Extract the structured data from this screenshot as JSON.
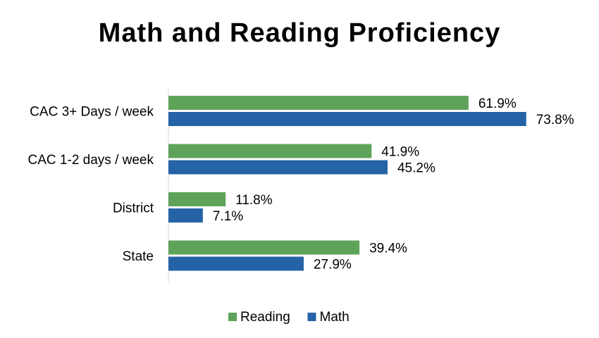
{
  "chart_data": {
    "type": "bar",
    "orientation": "horizontal",
    "title": "Math and Reading Proficiency",
    "categories": [
      "CAC 3+ Days / week",
      "CAC 1-2 days / week",
      "District",
      "State"
    ],
    "series": [
      {
        "name": "Reading",
        "color": "#5fa35b",
        "values": [
          61.9,
          41.9,
          11.8,
          39.4
        ],
        "labels": [
          "61.9%",
          "41.9%",
          "11.8%",
          "39.4%"
        ]
      },
      {
        "name": "Math",
        "color": "#2563a6",
        "values": [
          73.8,
          45.2,
          7.1,
          27.9
        ],
        "labels": [
          "73.8%",
          "45.2%",
          "7.1%",
          "27.9%"
        ]
      }
    ],
    "xlim": [
      0,
      100
    ],
    "grid": false,
    "legend_position": "bottom"
  }
}
